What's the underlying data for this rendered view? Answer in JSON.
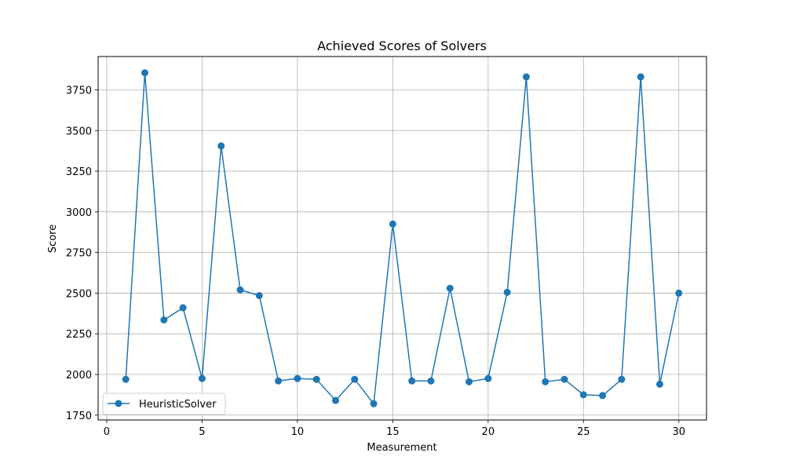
{
  "chart_data": {
    "type": "line",
    "title": "Achieved Scores of Solvers",
    "xlabel": "Measurement",
    "ylabel": "Score",
    "xlim": [
      -0.45,
      31.45
    ],
    "ylim": [
      1720,
      3955
    ],
    "xticks": [
      0,
      5,
      10,
      15,
      20,
      25,
      30
    ],
    "yticks": [
      1750,
      2000,
      2250,
      2500,
      2750,
      3000,
      3250,
      3500,
      3750
    ],
    "grid": true,
    "legend_position": "lower-left",
    "series": [
      {
        "name": "HeuristicSolver",
        "color": "#1f77b4",
        "marker": "circle",
        "x": [
          1,
          2,
          3,
          4,
          5,
          6,
          7,
          8,
          9,
          10,
          11,
          12,
          13,
          14,
          15,
          16,
          17,
          18,
          19,
          20,
          21,
          22,
          23,
          24,
          25,
          26,
          27,
          28,
          29,
          30
        ],
        "values": [
          1970,
          3855,
          2335,
          2410,
          1975,
          3405,
          2520,
          2485,
          1960,
          1975,
          1970,
          1840,
          1970,
          1820,
          2925,
          1960,
          1960,
          2530,
          1955,
          1975,
          2505,
          3830,
          1955,
          1970,
          1875,
          1870,
          1970,
          3830,
          1940,
          2500
        ]
      }
    ]
  }
}
